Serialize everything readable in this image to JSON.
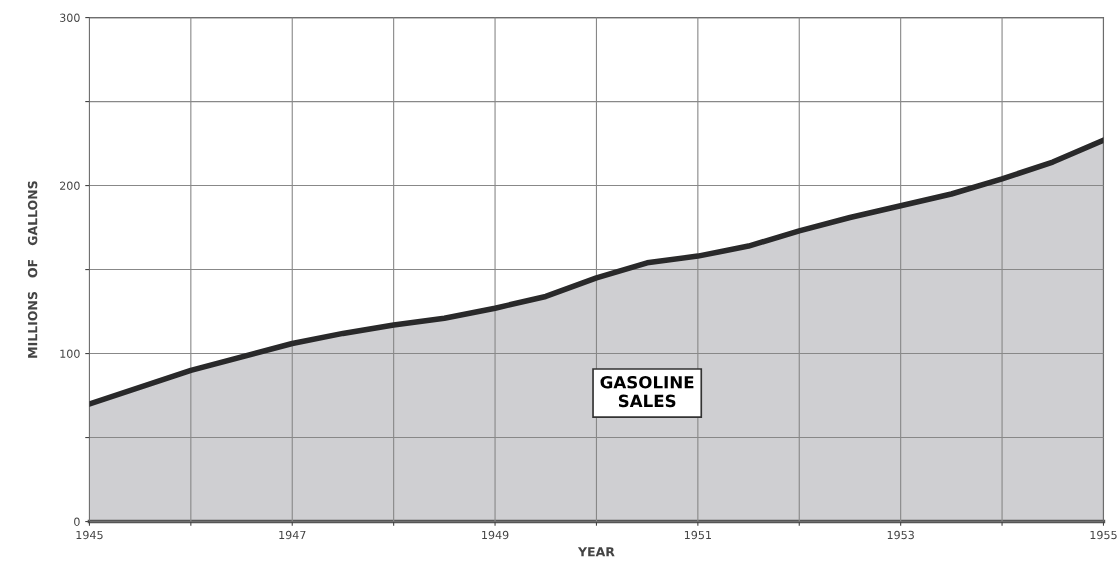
{
  "chart_data": {
    "type": "area",
    "xlabel": "YEAR",
    "ylabel": "MILLIONS   OF   GALLONS",
    "x": [
      1945,
      1946,
      1947,
      1947.5,
      1948,
      1948.5,
      1949,
      1949.5,
      1950,
      1950.5,
      1951,
      1951.5,
      1952,
      1952.5,
      1953,
      1953.5,
      1954,
      1954.5,
      1955
    ],
    "series": [
      {
        "color": "#cfcfd2",
        "values": [
          70,
          90,
          106,
          112,
          117,
          121,
          127,
          134,
          145,
          154,
          158,
          164,
          173,
          181,
          188,
          195,
          204,
          214,
          227
        ]
      }
    ],
    "xlim": [
      1945,
      1955
    ],
    "ylim": [
      0,
      300
    ],
    "xticks": [
      1945,
      {
        "value": 1946,
        "label": null
      },
      1947,
      {
        "value": 1948,
        "label": null
      },
      1949,
      {
        "value": 1950,
        "label": null
      },
      1951,
      {
        "value": 1952,
        "label": null
      },
      1953,
      {
        "value": 1954,
        "label": null
      },
      1955
    ],
    "yticks": [
      0,
      {
        "value": 50,
        "label": null
      },
      100,
      {
        "value": 150,
        "label": null
      },
      200,
      {
        "value": 250,
        "label": null
      },
      300
    ],
    "grid": true,
    "annotations": [
      "GASOLINE\nSALES"
    ]
  }
}
